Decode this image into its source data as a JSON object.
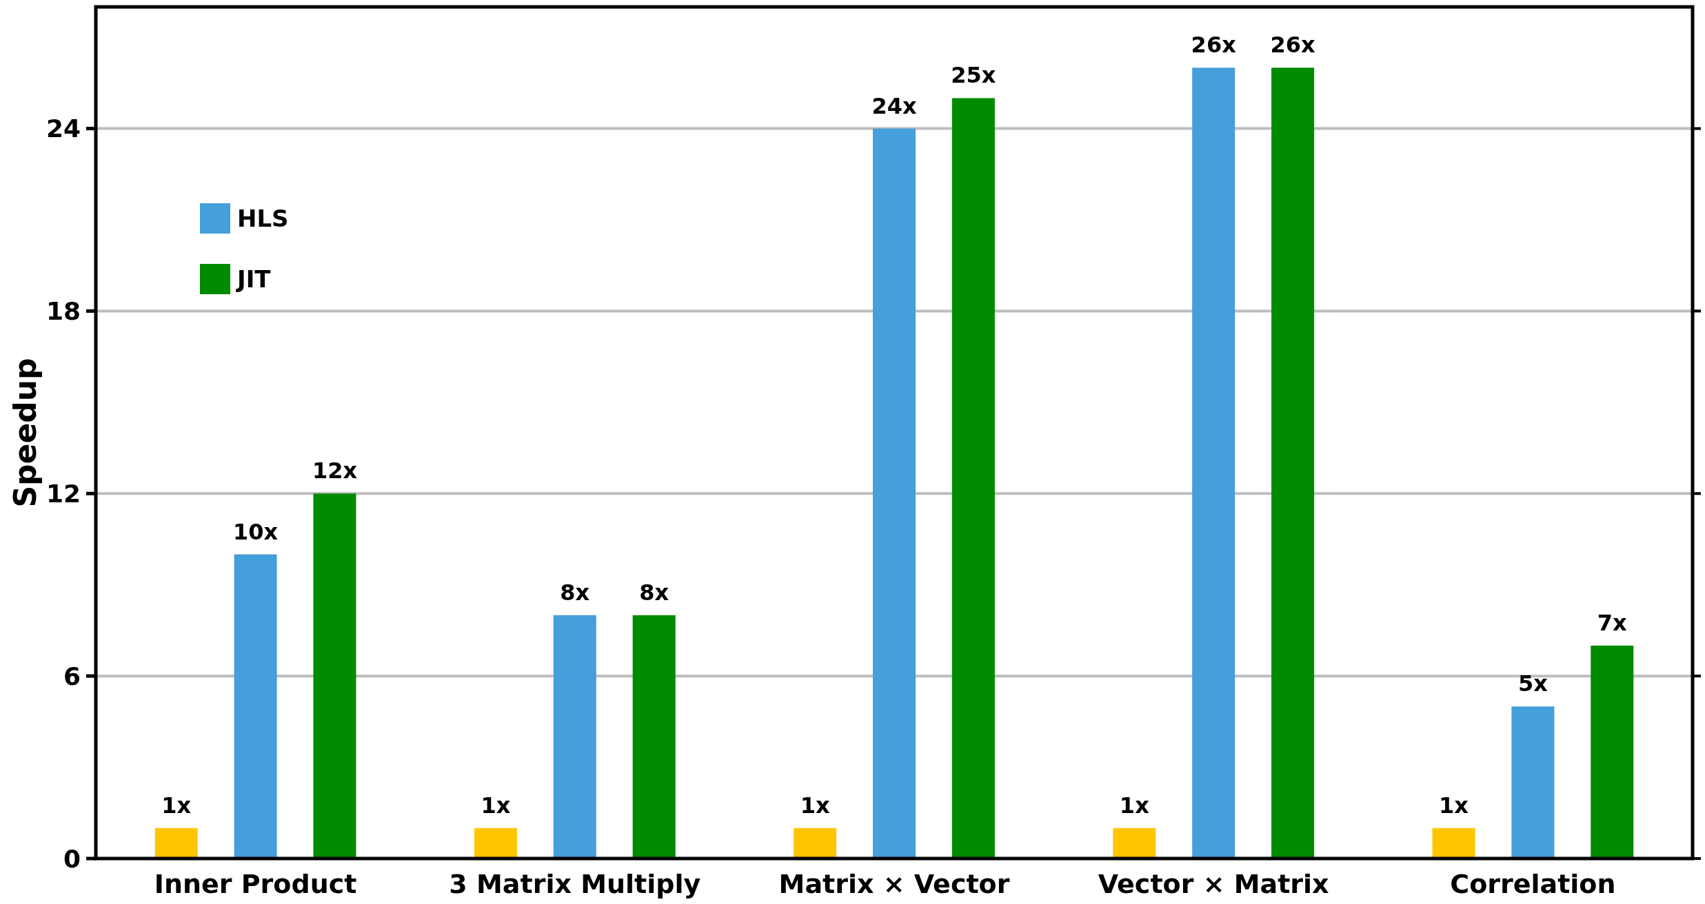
{
  "chart_data": {
    "type": "bar",
    "ylabel": "Speedup",
    "categories": [
      "Inner Product",
      "3 Matrix Multiply",
      "Matrix × Vector",
      "Vector × Matrix",
      "Correlation"
    ],
    "series": [
      {
        "color": "#ffc600",
        "values": [
          1,
          1,
          1,
          1,
          1
        ],
        "value_labels": [
          "1x",
          "1x",
          "1x",
          "1x",
          "1x"
        ]
      },
      {
        "name": "HLS",
        "color": "#459fda",
        "values": [
          10,
          8,
          24,
          26,
          5
        ],
        "value_labels": [
          "10x",
          "8x",
          "24x",
          "26x",
          "5x"
        ]
      },
      {
        "name": "JIT",
        "color": "#008b00",
        "values": [
          12,
          8,
          25,
          26,
          7
        ],
        "value_labels": [
          "12x",
          "8x",
          "25x",
          "26x",
          "7x"
        ]
      }
    ],
    "ylim": [
      0,
      28
    ],
    "yticks": [
      0,
      6,
      12,
      18,
      24
    ],
    "grid": "y",
    "legend": "top left"
  }
}
